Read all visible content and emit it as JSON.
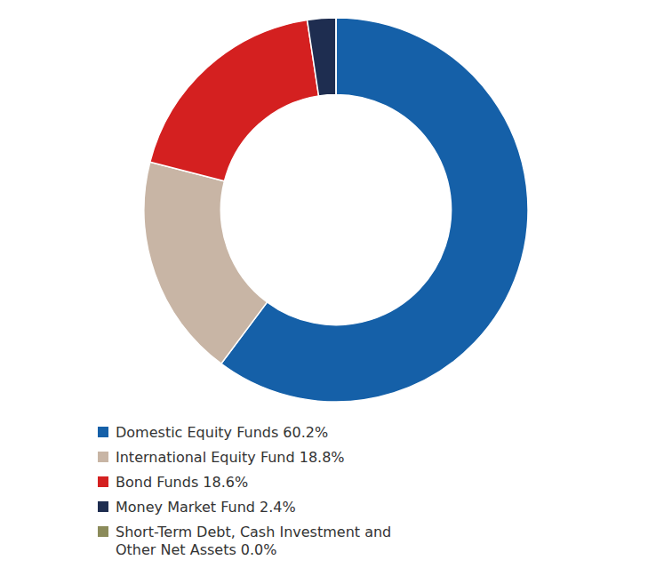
{
  "chart_data": {
    "type": "pie",
    "categories": [
      "Domestic Equity Funds 60.2%",
      "International Equity Fund 18.8%",
      "Bond Funds 18.6%",
      "Money Market Fund 2.4%",
      "Short-Term Debt, Cash Investment and\nOther Net Assets 0.0%"
    ],
    "values": [
      60.2,
      18.8,
      18.6,
      2.4,
      0.0
    ],
    "colors": [
      "#1560a8",
      "#c8b5a5",
      "#d42020",
      "#1e2d50",
      "#8b8b5a"
    ],
    "legend": "bottom"
  }
}
